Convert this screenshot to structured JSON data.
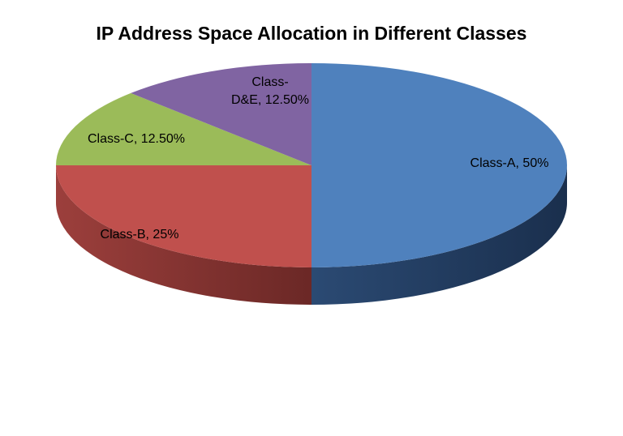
{
  "chart_data": {
    "type": "pie",
    "title": "IP Address Space Allocation in Different Classes",
    "slices": [
      {
        "label_lines": [
          "Class-A, 50%"
        ],
        "value": 50,
        "color": "#4F81BD"
      },
      {
        "label_lines": [
          "Class-B, 25%"
        ],
        "value": 25,
        "color": "#C0504D"
      },
      {
        "label_lines": [
          "Class-C, 12.50%"
        ],
        "value": 12.5,
        "color": "#9BBB59"
      },
      {
        "label_lines": [
          "Class-",
          "D&E, 12.50%"
        ],
        "value": 12.5,
        "color": "#8064A2"
      }
    ],
    "style": "3d",
    "legend": "none"
  }
}
